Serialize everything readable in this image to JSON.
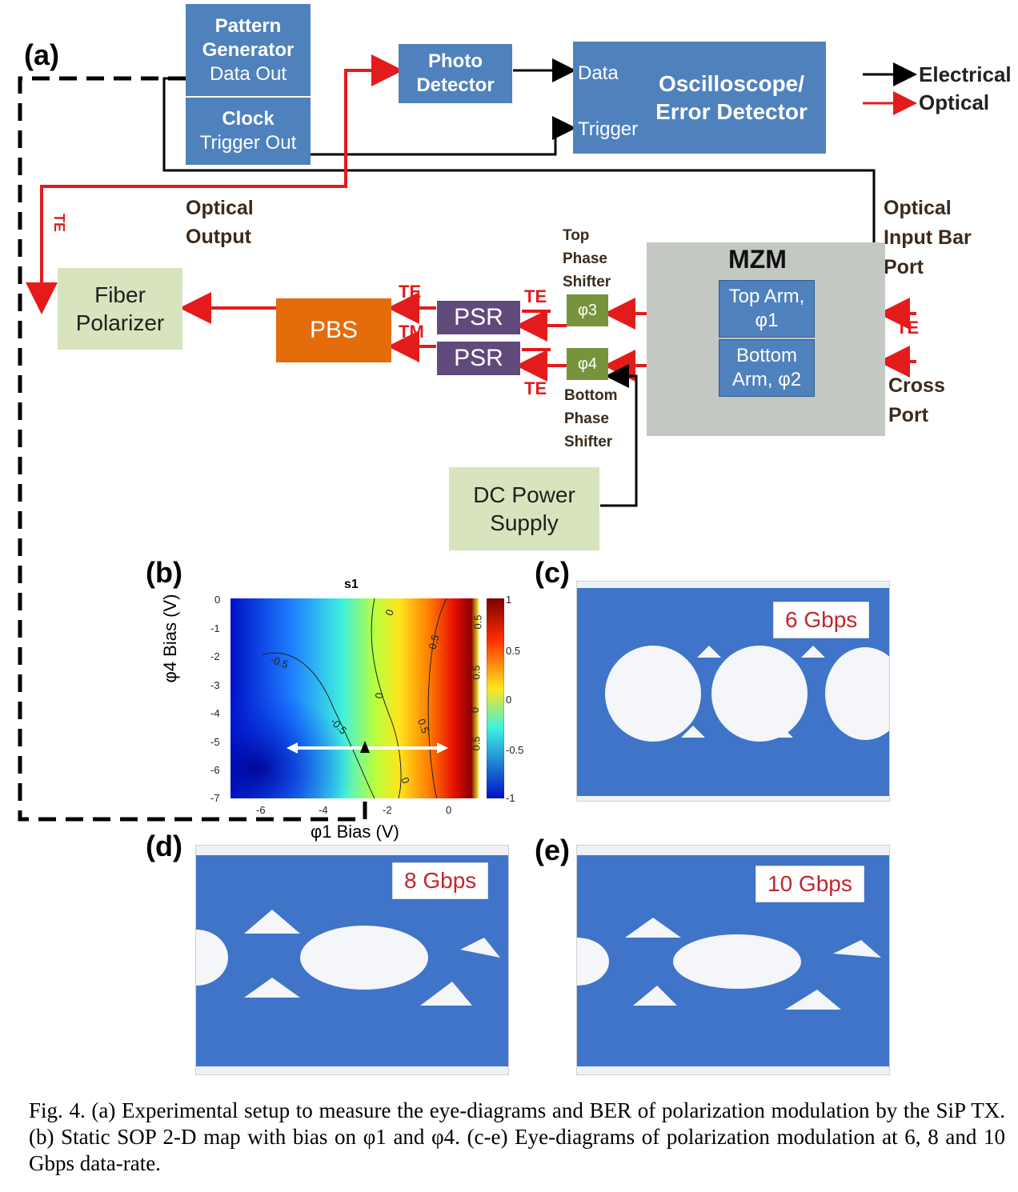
{
  "panels": {
    "a": "(a)",
    "b": "(b)",
    "c": "(c)",
    "d": "(d)",
    "e": "(e)"
  },
  "pattern_generator": {
    "title": "Pattern Generator",
    "data_out": "Data Out",
    "clock": "Clock",
    "trigger_out": "Trigger Out"
  },
  "photo_detector": "Photo Detector",
  "oscilloscope": {
    "title": "Oscilloscope/ Error Detector",
    "data": "Data",
    "trigger": "Trigger"
  },
  "legend": {
    "electrical": "Electrical",
    "optical": "Optical"
  },
  "labels": {
    "optical_output": "Optical Output",
    "optical_input_bar_port": "Optical Input Bar Port",
    "cross_port": "Cross Port",
    "top_phase_shifter": "Top Phase Shifter",
    "bottom_phase_shifter": "Bottom Phase Shifter",
    "te": "TE",
    "tm": "TM"
  },
  "mzm": {
    "title": "MZM",
    "top_arm": "Top Arm, φ1",
    "bottom_arm": "Bottom Arm, φ2"
  },
  "fiber_polarizer": "Fiber Polarizer",
  "pbs": "PBS",
  "psr": "PSR",
  "phi3": "φ3",
  "phi4": "φ4",
  "dc_power_supply": "DC Power Supply",
  "map": {
    "title": "s1",
    "xlabel": "φ1 Bias (V)",
    "ylabel": "φ4 Bias (V)",
    "xticks": [
      "-6",
      "-4",
      "-2",
      "0"
    ],
    "yticks": [
      "0",
      "-1",
      "-2",
      "-3",
      "-4",
      "-5",
      "-6",
      "-7"
    ],
    "cbar_ticks": [
      "1",
      "0.5",
      "0",
      "-0.5",
      "-1"
    ],
    "contour_labels": [
      "0",
      "0.5",
      "-0.5",
      "0",
      "-0.5",
      "0.5",
      "0",
      "0.5",
      "0",
      "0.5",
      "0.5"
    ]
  },
  "rates": {
    "c": "6 Gbps",
    "d": "8 Gbps",
    "e": "10 Gbps"
  },
  "caption": "Fig. 4. (a) Experimental setup to measure the eye-diagrams and BER of polarization modulation by the SiP TX. (b) Static SOP 2-D map with bias on φ1 and φ4. (c-e) Eye-diagrams of polarization modulation at 6, 8 and 10 Gbps data-rate.",
  "colors": {
    "electrical": "#000000",
    "optical": "#e31b1b",
    "block_blue": "#4f81bd",
    "block_green": "#d7e4bd",
    "pbs": "#e46c0a",
    "psr": "#604a7b",
    "phase": "#77933c",
    "mzm_bg": "#c3c8c3"
  }
}
